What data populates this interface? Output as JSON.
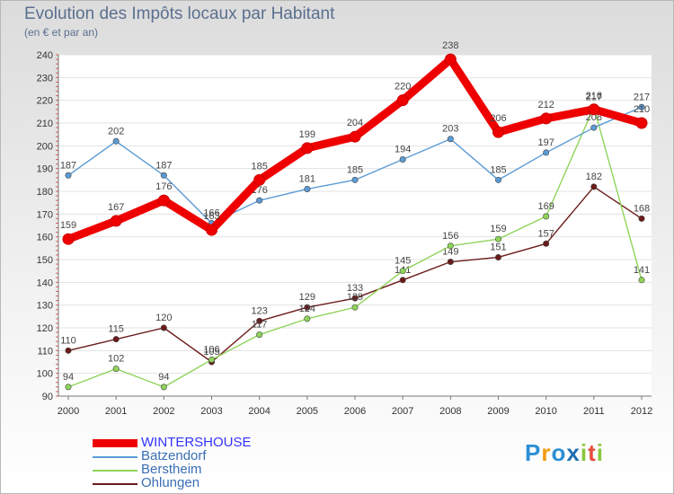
{
  "title": "Evolution des Impôts locaux par Habitant",
  "subtitle": "(en € et par an)",
  "logo": "Proxiti",
  "chart_data": {
    "type": "line",
    "categories": [
      "2000",
      "2001",
      "2002",
      "2003",
      "2004",
      "2005",
      "2006",
      "2007",
      "2008",
      "2009",
      "2010",
      "2011",
      "2012"
    ],
    "ylim": [
      90,
      240
    ],
    "yticks": [
      90,
      100,
      110,
      120,
      130,
      140,
      150,
      160,
      170,
      180,
      190,
      200,
      210,
      220,
      230,
      240
    ],
    "grid": "horizontal",
    "legend": "bottom-left",
    "series": [
      {
        "name": "WINTERSHOUSE",
        "color": "#ee0000",
        "values": [
          159,
          167,
          176,
          163,
          185,
          199,
          204,
          220,
          238,
          206,
          212,
          216,
          210
        ]
      },
      {
        "name": "Batzendorf",
        "color": "#5b9bd5",
        "values": [
          187,
          202,
          187,
          166,
          176,
          181,
          185,
          194,
          203,
          185,
          197,
          208,
          217
        ]
      },
      {
        "name": "Berstheim",
        "color": "#8fd45a",
        "values": [
          94,
          102,
          94,
          106,
          117,
          124,
          129,
          145,
          156,
          159,
          169,
          217,
          141
        ]
      },
      {
        "name": "Ohlungen",
        "color": "#6b1a1a",
        "values": [
          110,
          115,
          120,
          105,
          123,
          129,
          133,
          141,
          149,
          151,
          157,
          182,
          168
        ]
      }
    ]
  }
}
